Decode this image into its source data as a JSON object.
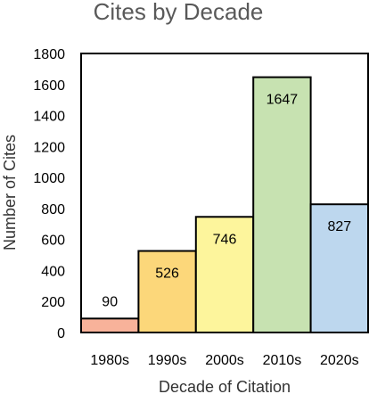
{
  "chart_data": {
    "type": "bar",
    "title": "Cites by Decade",
    "xlabel": "Decade of Citation",
    "ylabel": "Number of Cites",
    "categories": [
      "1980s",
      "1990s",
      "2000s",
      "2010s",
      "2020s"
    ],
    "values": [
      90,
      526,
      746,
      1647,
      827
    ],
    "colors": [
      "#f8b29a",
      "#fcd77a",
      "#fdf59c",
      "#c7e2b1",
      "#bdd7ee"
    ],
    "ylim": [
      0,
      1800
    ],
    "yticks": [
      0,
      200,
      400,
      600,
      800,
      1000,
      1200,
      1400,
      1600,
      1800
    ],
    "grid": false,
    "legend": "none"
  }
}
